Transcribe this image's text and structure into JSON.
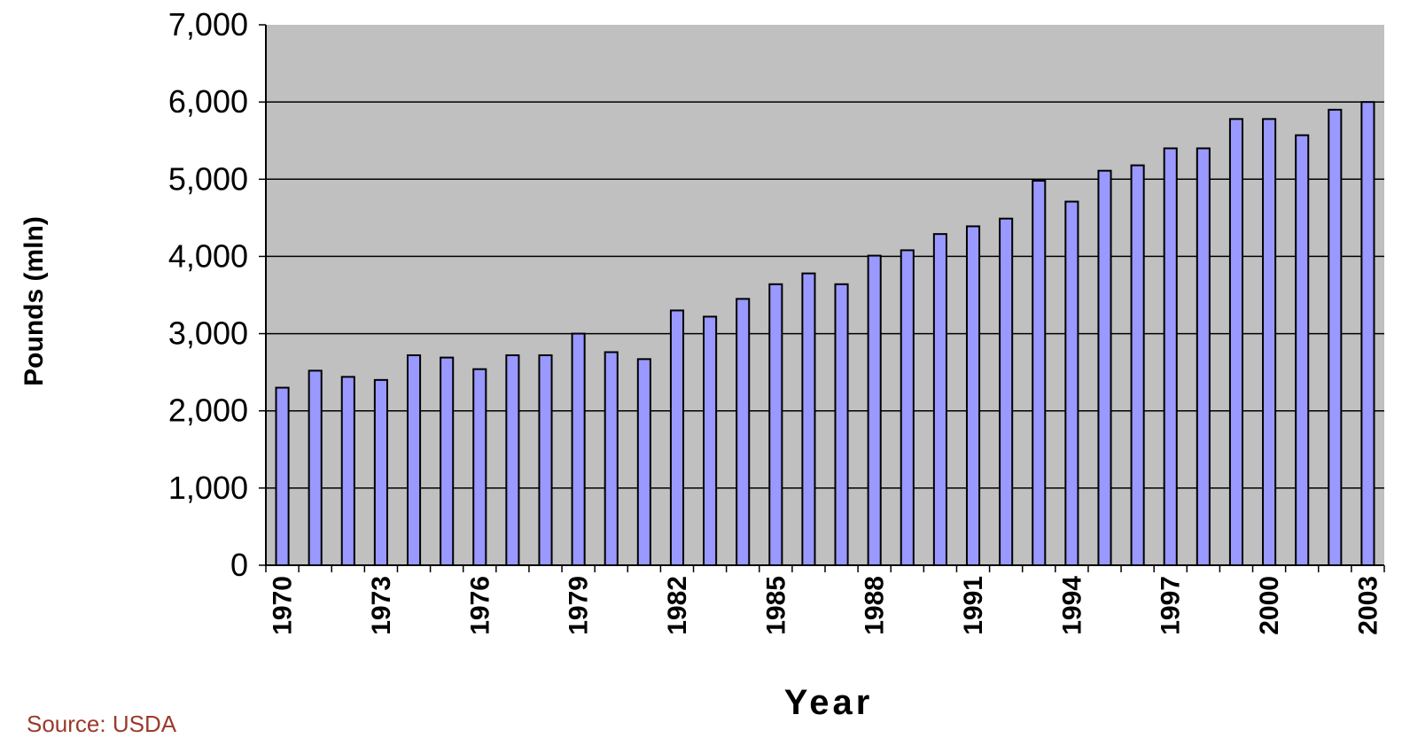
{
  "chart_data": {
    "type": "bar",
    "xlabel": "Year",
    "ylabel": "Pounds (mln)",
    "ylim": [
      0,
      7000
    ],
    "yticks": [
      "0",
      "1,000",
      "2,000",
      "3,000",
      "4,000",
      "5,000",
      "6,000",
      "7,000"
    ],
    "ytick_values": [
      0,
      1000,
      2000,
      3000,
      4000,
      5000,
      6000,
      7000
    ],
    "categories": [
      "1970",
      "1971",
      "1972",
      "1973",
      "1974",
      "1975",
      "1976",
      "1977",
      "1978",
      "1979",
      "1980",
      "1981",
      "1982",
      "1983",
      "1984",
      "1985",
      "1986",
      "1987",
      "1988",
      "1989",
      "1990",
      "1991",
      "1992",
      "1993",
      "1994",
      "1995",
      "1996",
      "1997",
      "1998",
      "1999",
      "2000",
      "2001",
      "2002",
      "2003"
    ],
    "xtick_labels": [
      "1970",
      "1973",
      "1976",
      "1979",
      "1982",
      "1985",
      "1988",
      "1991",
      "1994",
      "1997",
      "2000",
      "2003"
    ],
    "values": [
      2300,
      2520,
      2440,
      2400,
      2720,
      2690,
      2540,
      2720,
      2720,
      3000,
      2760,
      2670,
      3300,
      3220,
      3450,
      3640,
      3780,
      3640,
      4010,
      4080,
      4290,
      4390,
      4490,
      4980,
      4710,
      5110,
      5180,
      5400,
      5400,
      5780,
      5780,
      5570,
      5900,
      6000
    ],
    "grid": true,
    "legend": "none",
    "colors": {
      "bar": "#9999ff",
      "plot_background": "#c0c0c0",
      "bar_edge": "#000000"
    }
  },
  "footer": {
    "source": "Source: USDA"
  }
}
